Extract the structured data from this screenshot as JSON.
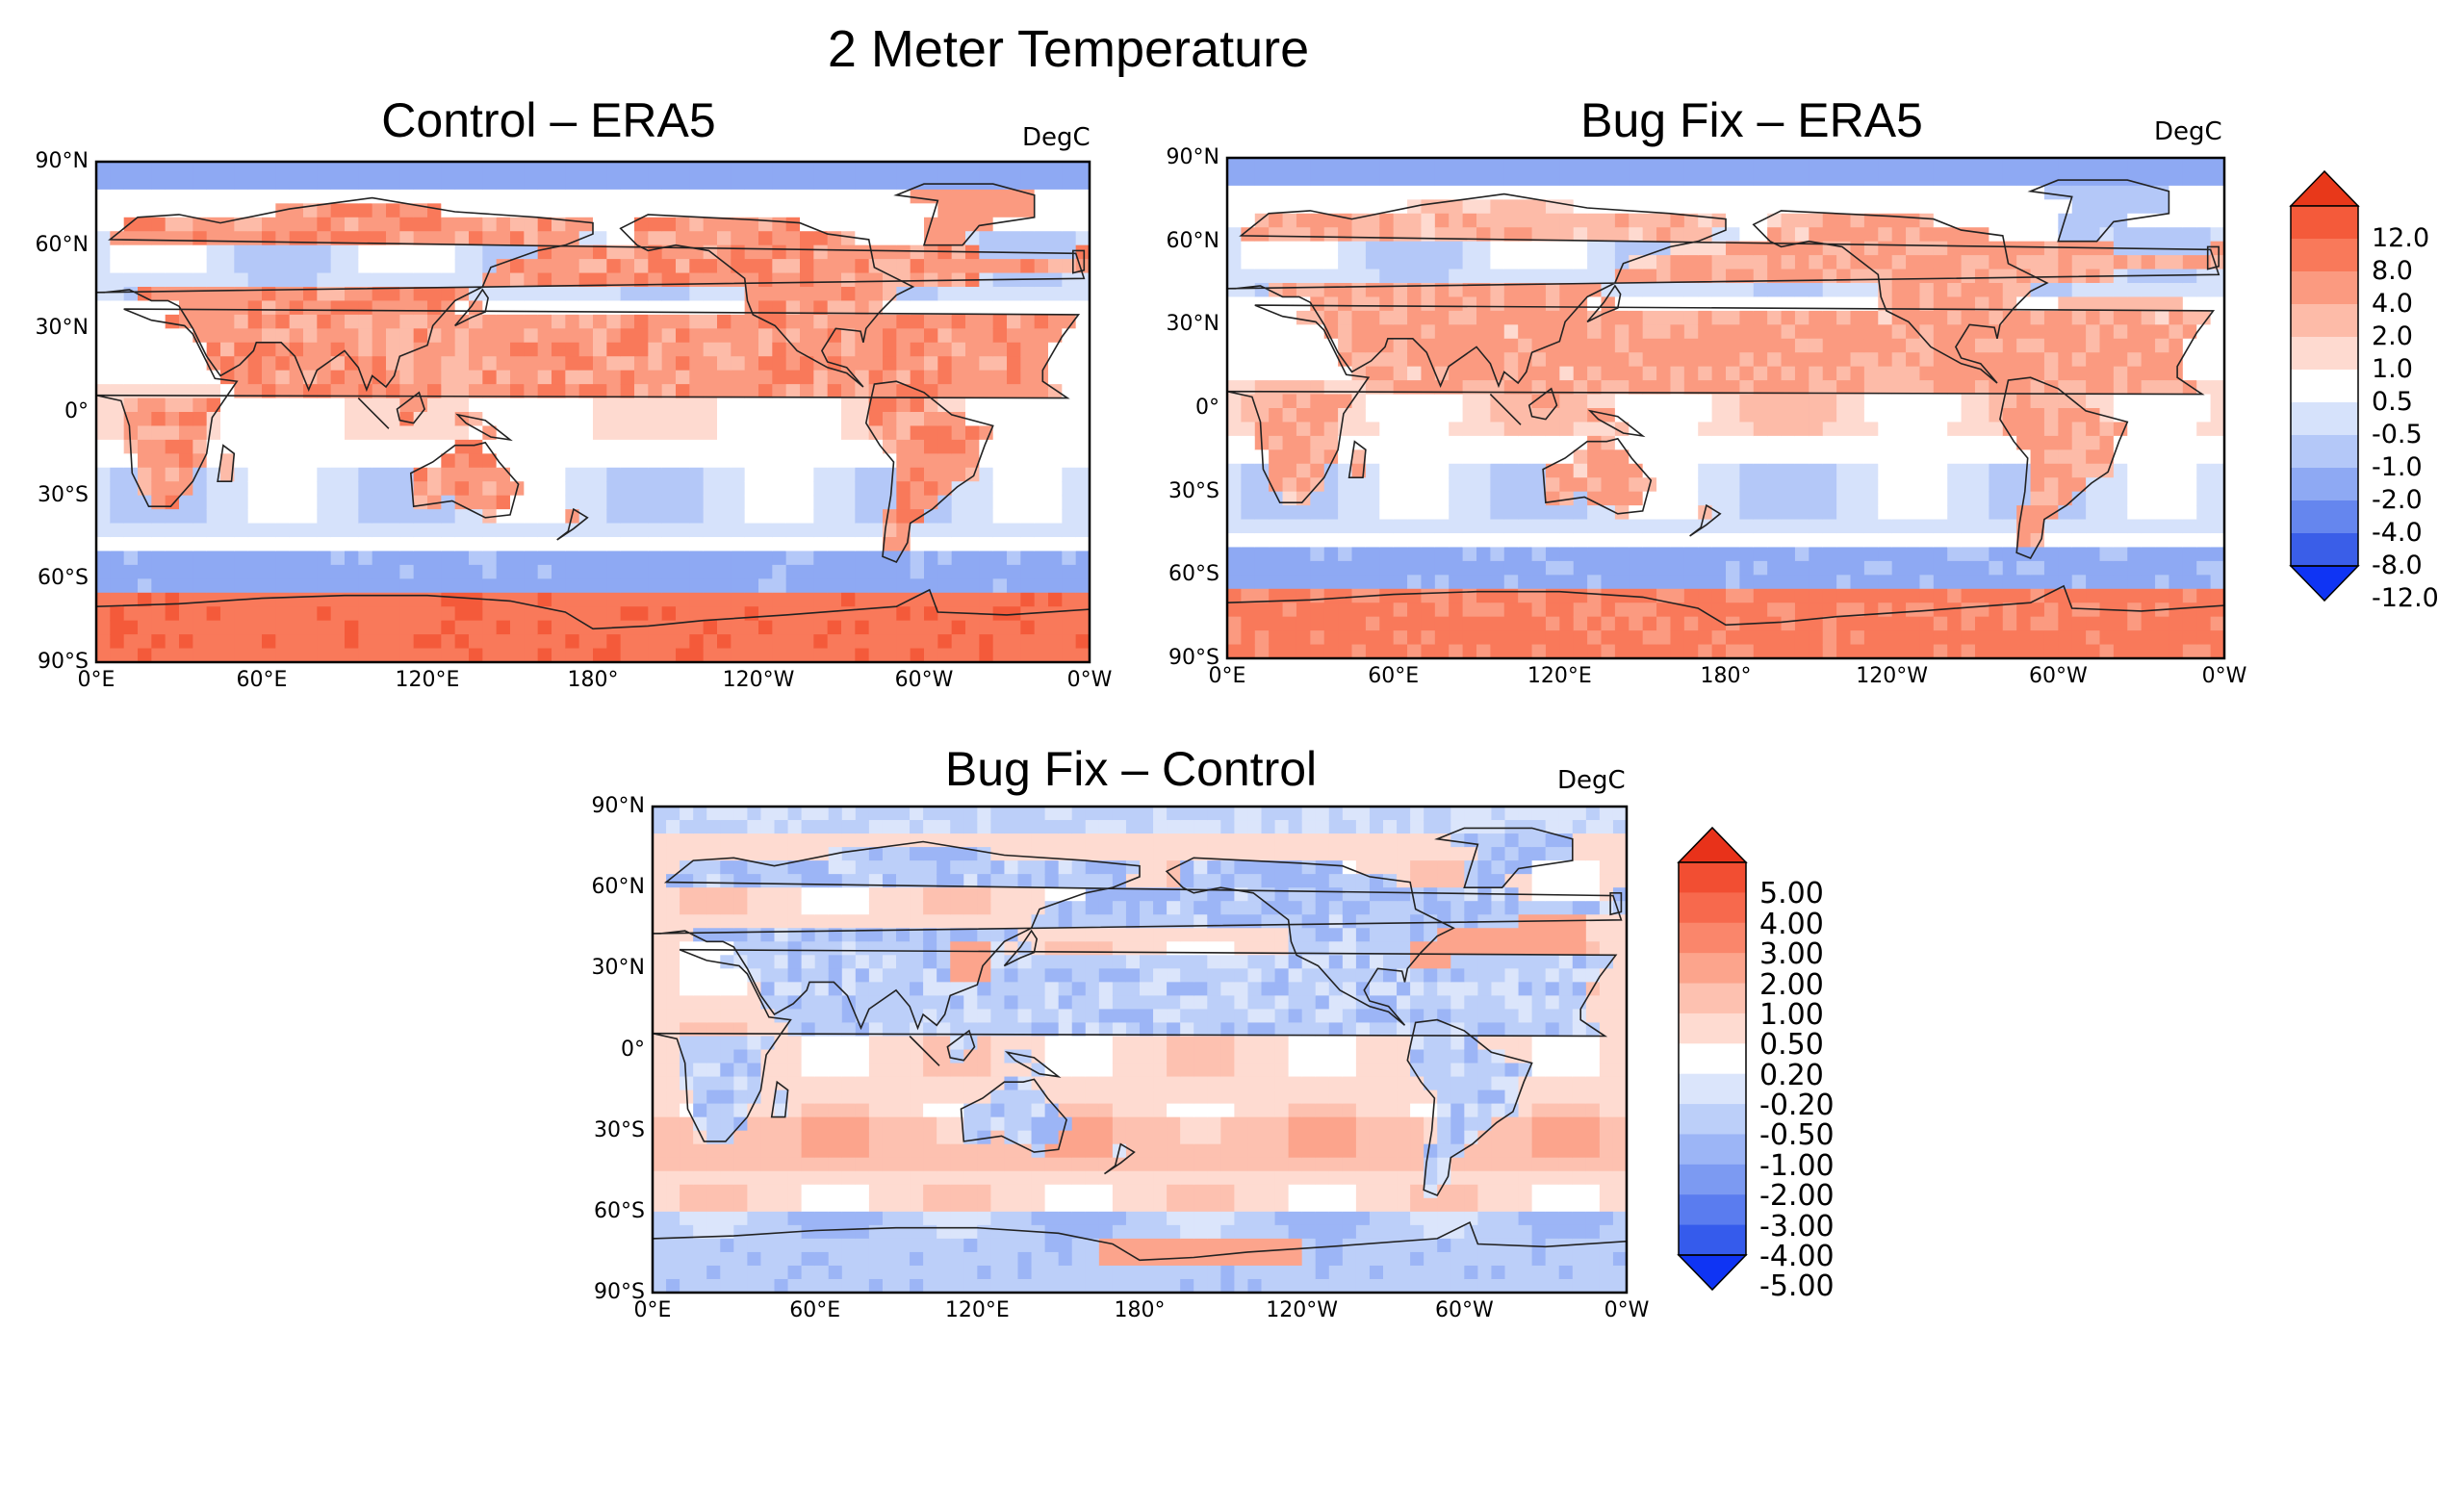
{
  "title": "2 Meter Temperature",
  "map_panels": [
    {
      "title": "Control – ERA5",
      "units": "DegC"
    },
    {
      "title": "Bug Fix – ERA5",
      "units": "DegC"
    },
    {
      "title": "Bug Fix – Control",
      "units": "DegC"
    }
  ],
  "lat_ticks": [
    "90°N",
    "60°N",
    "30°N",
    "0°",
    "30°S",
    "60°S",
    "90°S"
  ],
  "lon_ticks": [
    "0°E",
    "60°E",
    "120°E",
    "180°",
    "120°W",
    "60°W",
    "0°W"
  ],
  "colorbar_top": {
    "labels": [
      "12.0",
      "8.0",
      "4.0",
      "2.0",
      "1.0",
      "0.5",
      "-0.5",
      "-1.0",
      "-2.0",
      "-4.0",
      "-8.0",
      "-12.0"
    ],
    "colors": [
      "#e8381a",
      "#f45a3a",
      "#f9795a",
      "#fb9a80",
      "#fdbba8",
      "#fedad0",
      "#ffffff",
      "#d6e2fb",
      "#b4c8f8",
      "#8ea9f3",
      "#6586ee",
      "#3a5ee8",
      "#0f34f4"
    ]
  },
  "colorbar_bottom": {
    "labels": [
      "5.00",
      "4.00",
      "3.00",
      "2.00",
      "1.00",
      "0.50",
      "0.20",
      "-0.20",
      "-0.50",
      "-1.00",
      "-2.00",
      "-3.00",
      "-4.00",
      "-5.00"
    ],
    "colors": [
      "#e8321a",
      "#f24e32",
      "#f7694d",
      "#fa866b",
      "#fca48c",
      "#fdc1b0",
      "#fedbd1",
      "#ffffff",
      "#dbe5fb",
      "#bccff9",
      "#9cb5f6",
      "#7c9af2",
      "#5a7cef",
      "#355bec",
      "#0f34f4"
    ]
  }
}
